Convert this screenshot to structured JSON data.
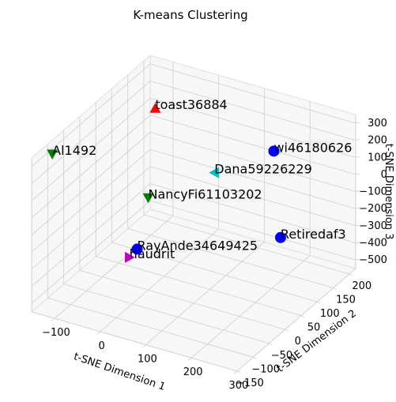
{
  "chart_data": {
    "type": "scatter3d",
    "title": "K-means Clustering",
    "xlabel": "t-SNE Dimension 1",
    "ylabel": "t-SNE Dimension 2",
    "zlabel": "t-SNE Dimension 3",
    "labels": [
      "toast36884",
      "Al1492",
      "wi46180626",
      "Dana59226229",
      "NancyFi61103202",
      "Retiredaf3",
      "RayAnde34649425",
      "haudrit"
    ],
    "x": [
      -90,
      -140,
      170,
      110,
      0,
      290,
      60,
      50
    ],
    "y": [
      150,
      -100,
      150,
      50,
      0,
      0,
      -120,
      -130
    ],
    "z": [
      200,
      300,
      150,
      140,
      -10,
      -20,
      -70,
      -110
    ],
    "colors": [
      "#ff0000",
      "#008000",
      "#0000ff",
      "#00bfbf",
      "#008000",
      "#0000ff",
      "#0000ff",
      "#bf00bf"
    ],
    "markers": [
      "triangle-up",
      "triangle-down",
      "circle",
      "triangle-left",
      "triangle-down",
      "circle",
      "circle",
      "triangle-right"
    ],
    "xlim": [
      -150,
      300
    ],
    "ylim": [
      -150,
      220
    ],
    "zlim": [
      -550,
      350
    ],
    "xticks": [
      {
        "value": -100,
        "label": "−100"
      },
      0,
      100,
      200,
      300
    ],
    "yticks": [
      {
        "value": -150,
        "label": "−150"
      },
      {
        "value": -100,
        "label": "−100"
      },
      {
        "value": -50,
        "label": "−50"
      },
      0,
      50,
      100,
      150,
      200
    ],
    "zticks": [
      {
        "value": -500,
        "label": "−500"
      },
      {
        "value": -400,
        "label": "−400"
      },
      {
        "value": -300,
        "label": "−300"
      },
      {
        "value": -200,
        "label": "−200"
      },
      {
        "value": -100,
        "label": "−100"
      },
      0,
      100,
      200,
      300
    ],
    "grid": true
  }
}
